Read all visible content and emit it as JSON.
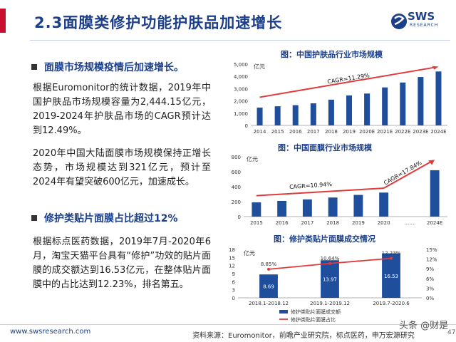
{
  "header": {
    "title": "2.3面膜类修护功能护肤品加速增长",
    "logo_text": "SWS",
    "logo_sub": "RESEARCH"
  },
  "left": {
    "bullet1": "面膜市场规模疫情后加速增长。",
    "para1": "根据Euromonitor的统计数据，2019年中国护肤品市场规模容量为2,444.15亿元，2019-2024年护肤品市场的CAGR预计达到12.49%。",
    "para2": "2020年中国大陆面膜市场规模保持正增长态势，市场规模达到321亿元，预计至2024年有望突破600亿元，加速成长。",
    "bullet2": "修护类贴片面膜占比超过12%",
    "para3": "根据标点医药数据，2019年7月-2020年6月，淘宝天猫平台具有“修护”功效的贴片面膜的成交额达到16.53亿元，在整体贴片面膜中的占比达到12.23%，排名第五。"
  },
  "footer": {
    "url": "www.swsresearch.com",
    "source": "资料来源：Euromonitor，前瞻产业研究院，标点医药，申万宏源研究",
    "watermark": "头条 @财是",
    "page": "47"
  },
  "colors": {
    "brand": "#1b3f8b",
    "bar": "#1f4e9c",
    "red": "#e03a3a",
    "accent": "#c8102e"
  },
  "chart_data": [
    {
      "type": "bar",
      "title": "图：中国护肤品行业市场规模",
      "unit": "亿元",
      "categories": [
        "2014",
        "2015",
        "2016",
        "2017",
        "2018",
        "2019",
        "2020E",
        "2021E",
        "2022E",
        "2023E",
        "2024E"
      ],
      "values": [
        1450,
        1560,
        1650,
        1800,
        2100,
        2444.15,
        2600,
        3100,
        3500,
        3950,
        4400
      ],
      "yticks": [
        "0",
        "1,000",
        "2,000",
        "3,000",
        "4,000",
        "5,000"
      ],
      "ylim": [
        0,
        5000
      ],
      "annotation": "CAGR=11.29%"
    },
    {
      "type": "bar",
      "title": "图：中国面膜行业市场规模",
      "unit": "亿元",
      "categories": [
        "2015",
        "2016",
        "2017",
        "2018",
        "2019",
        "2020",
        "……",
        "2024E"
      ],
      "values": [
        190,
        210,
        230,
        255,
        290,
        321,
        null,
        620
      ],
      "yticks": [
        "0",
        "200",
        "400",
        "600",
        "800"
      ],
      "ylim": [
        0,
        800
      ],
      "annotations": [
        "CAGR=10.94%",
        "CAGR=17.84%"
      ]
    },
    {
      "type": "bar+line",
      "title": "图：修护类贴片面膜成交情况",
      "unit": "亿元",
      "categories": [
        "2018.1-2018.12",
        "2019.1-2019.12",
        "2019.7-2020.6"
      ],
      "series": [
        {
          "name": "修护类贴片面膜成交额",
          "values": [
            8.69,
            13.97,
            16.53
          ],
          "labels": [
            "8.69",
            "13.97",
            "16.53"
          ]
        },
        {
          "name": "修护类贴片面膜占比",
          "values": [
            8.85,
            10.64,
            12.23
          ],
          "labels": [
            "8.85%",
            "10.64%",
            "12.23%"
          ]
        }
      ],
      "yticks_left": [
        "0",
        "3",
        "6",
        "9",
        "12",
        "15",
        "18"
      ],
      "yticks_right": [
        "0%",
        "3%",
        "6%",
        "9%",
        "12%",
        "15%"
      ],
      "ylim_left": [
        0,
        18
      ],
      "ylim_right": [
        0,
        15
      ]
    }
  ]
}
